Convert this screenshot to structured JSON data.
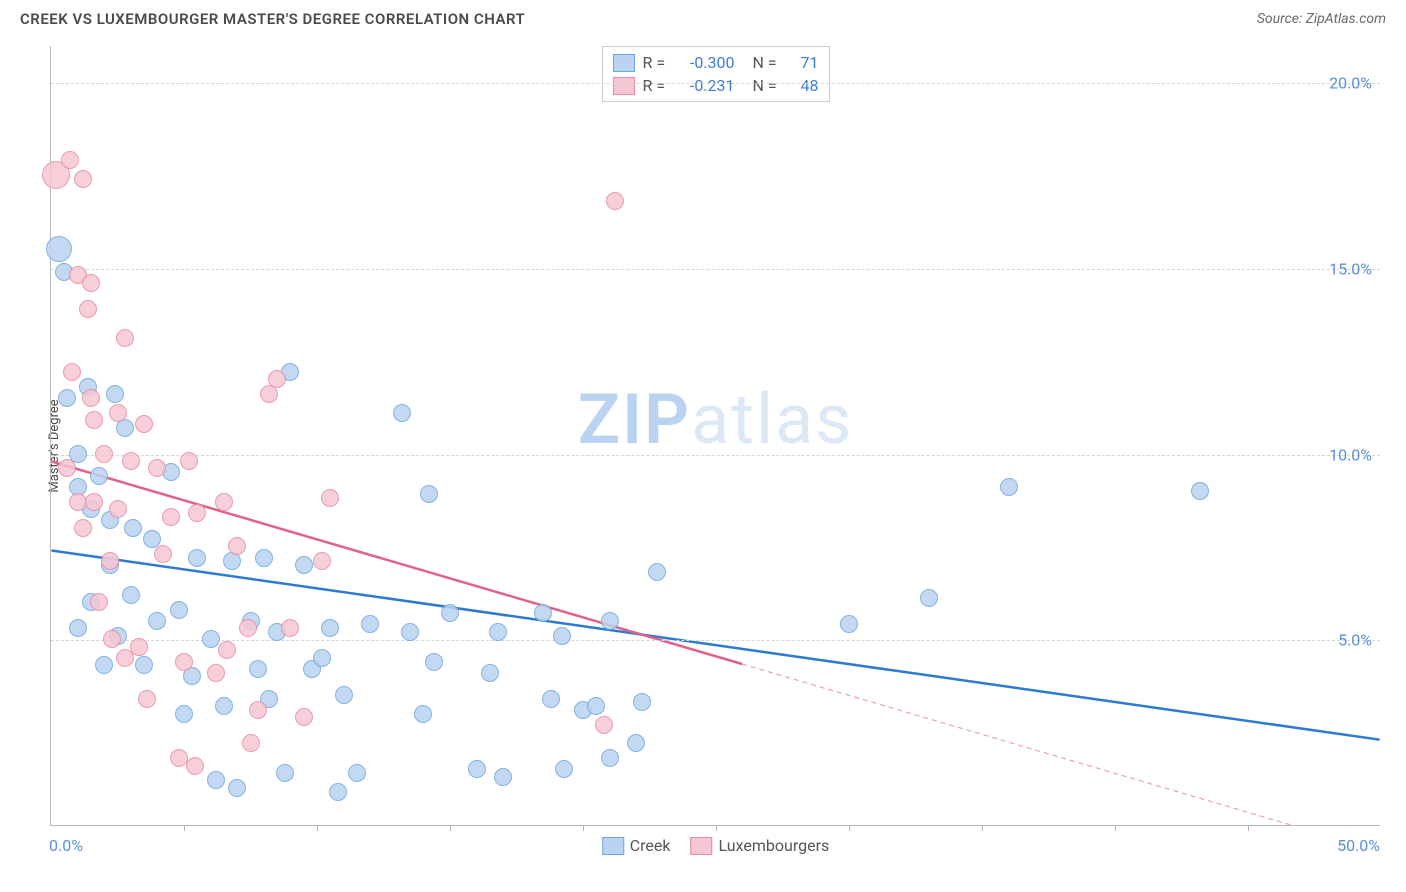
{
  "header": {
    "title": "CREEK VS LUXEMBOURGER MASTER'S DEGREE CORRELATION CHART",
    "source": "Source: ZipAtlas.com"
  },
  "chart": {
    "type": "scatter",
    "y_label": "Master's Degree",
    "xlim": [
      0,
      50
    ],
    "ylim": [
      0,
      21
    ],
    "x_tick_step": 5,
    "x_min_label": "0.0%",
    "x_max_label": "50.0%",
    "y_ticks": [
      5,
      10,
      15,
      20
    ],
    "y_tick_labels": [
      "5.0%",
      "10.0%",
      "15.0%",
      "20.0%"
    ],
    "grid_color": "#d6d6d6",
    "background_color": "#ffffff",
    "axis_label_color": "#5a8fd8",
    "watermark": {
      "text_bold": "ZIP",
      "text_light": "atlas",
      "color_bold": "#b9d3f0",
      "color_light": "#dce8f6"
    },
    "series": [
      {
        "name": "Creek",
        "color_fill": "#b9d3f0",
        "color_stroke": "#6ea6e0",
        "marker_radius": 9,
        "R": "-0.300",
        "N": "71",
        "trend": {
          "y_at_x0": 7.4,
          "y_at_x50": 2.3,
          "solid_until_x": 50,
          "stroke": "#2f7ad1",
          "width": 2.5
        },
        "points": [
          {
            "x": 0.3,
            "y": 15.5,
            "r": 13
          },
          {
            "x": 0.5,
            "y": 14.9
          },
          {
            "x": 0.6,
            "y": 11.5
          },
          {
            "x": 1.0,
            "y": 10.0
          },
          {
            "x": 1.4,
            "y": 11.8
          },
          {
            "x": 2.4,
            "y": 11.6
          },
          {
            "x": 1.0,
            "y": 9.1
          },
          {
            "x": 1.5,
            "y": 8.5
          },
          {
            "x": 2.2,
            "y": 7.0
          },
          {
            "x": 2.2,
            "y": 8.2
          },
          {
            "x": 3.1,
            "y": 8.0
          },
          {
            "x": 3.8,
            "y": 7.7
          },
          {
            "x": 3.0,
            "y": 6.2
          },
          {
            "x": 2.5,
            "y": 5.1
          },
          {
            "x": 1.5,
            "y": 6.0
          },
          {
            "x": 1.8,
            "y": 9.4
          },
          {
            "x": 4.5,
            "y": 9.5
          },
          {
            "x": 6.8,
            "y": 7.1
          },
          {
            "x": 7.5,
            "y": 5.5
          },
          {
            "x": 5.0,
            "y": 3.0
          },
          {
            "x": 5.3,
            "y": 4.0
          },
          {
            "x": 6.0,
            "y": 5.0
          },
          {
            "x": 6.2,
            "y": 1.2
          },
          {
            "x": 7.0,
            "y": 1.0
          },
          {
            "x": 7.8,
            "y": 4.2
          },
          {
            "x": 8.2,
            "y": 3.4
          },
          {
            "x": 8.5,
            "y": 5.2
          },
          {
            "x": 8.8,
            "y": 1.4
          },
          {
            "x": 9.0,
            "y": 12.2
          },
          {
            "x": 9.5,
            "y": 7.0
          },
          {
            "x": 9.8,
            "y": 4.2
          },
          {
            "x": 10.2,
            "y": 4.5
          },
          {
            "x": 10.5,
            "y": 5.3
          },
          {
            "x": 10.8,
            "y": 0.9
          },
          {
            "x": 11.0,
            "y": 3.5
          },
          {
            "x": 12.0,
            "y": 5.4
          },
          {
            "x": 13.2,
            "y": 11.1
          },
          {
            "x": 13.5,
            "y": 5.2
          },
          {
            "x": 14.0,
            "y": 3.0
          },
          {
            "x": 14.2,
            "y": 8.9
          },
          {
            "x": 14.4,
            "y": 4.4
          },
          {
            "x": 15.0,
            "y": 5.7
          },
          {
            "x": 16.0,
            "y": 1.5
          },
          {
            "x": 16.5,
            "y": 4.1
          },
          {
            "x": 16.8,
            "y": 5.2
          },
          {
            "x": 17.0,
            "y": 1.3
          },
          {
            "x": 18.5,
            "y": 5.7
          },
          {
            "x": 18.8,
            "y": 3.4
          },
          {
            "x": 19.2,
            "y": 5.1
          },
          {
            "x": 19.3,
            "y": 1.5
          },
          {
            "x": 20.0,
            "y": 3.1
          },
          {
            "x": 20.5,
            "y": 3.2
          },
          {
            "x": 21.0,
            "y": 1.8
          },
          {
            "x": 21.0,
            "y": 5.5
          },
          {
            "x": 22.0,
            "y": 2.2
          },
          {
            "x": 22.2,
            "y": 3.3
          },
          {
            "x": 22.8,
            "y": 6.8
          },
          {
            "x": 30.0,
            "y": 5.4
          },
          {
            "x": 33.0,
            "y": 6.1
          },
          {
            "x": 36.0,
            "y": 9.1
          },
          {
            "x": 43.2,
            "y": 9.0
          },
          {
            "x": 4.0,
            "y": 5.5
          },
          {
            "x": 3.5,
            "y": 4.3
          },
          {
            "x": 2.0,
            "y": 4.3
          },
          {
            "x": 1.0,
            "y": 5.3
          },
          {
            "x": 2.8,
            "y": 10.7
          },
          {
            "x": 5.5,
            "y": 7.2
          },
          {
            "x": 6.5,
            "y": 3.2
          },
          {
            "x": 8.0,
            "y": 7.2
          },
          {
            "x": 11.5,
            "y": 1.4
          },
          {
            "x": 4.8,
            "y": 5.8
          }
        ]
      },
      {
        "name": "Luxembourgers",
        "color_fill": "#f5c7d3",
        "color_stroke": "#e88aa3",
        "marker_radius": 9,
        "R": "-0.231",
        "N": "48",
        "trend": {
          "y_at_x0": 9.8,
          "y_at_x50": -0.7,
          "solid_until_x": 26,
          "stroke": "#e06288",
          "width": 2.5,
          "dash": "5,4"
        },
        "points": [
          {
            "x": 0.2,
            "y": 17.5,
            "r": 14
          },
          {
            "x": 0.7,
            "y": 17.9
          },
          {
            "x": 1.2,
            "y": 17.4
          },
          {
            "x": 1.0,
            "y": 14.8
          },
          {
            "x": 1.5,
            "y": 14.6
          },
          {
            "x": 2.8,
            "y": 13.1
          },
          {
            "x": 0.8,
            "y": 12.2
          },
          {
            "x": 1.5,
            "y": 11.5
          },
          {
            "x": 1.6,
            "y": 10.9
          },
          {
            "x": 2.5,
            "y": 11.1
          },
          {
            "x": 0.6,
            "y": 9.6
          },
          {
            "x": 1.0,
            "y": 8.7
          },
          {
            "x": 1.2,
            "y": 8.0
          },
          {
            "x": 1.6,
            "y": 8.7
          },
          {
            "x": 2.0,
            "y": 10.0
          },
          {
            "x": 2.2,
            "y": 7.1
          },
          {
            "x": 2.5,
            "y": 8.5
          },
          {
            "x": 3.0,
            "y": 9.8
          },
          {
            "x": 3.5,
            "y": 10.8
          },
          {
            "x": 4.0,
            "y": 9.6
          },
          {
            "x": 1.8,
            "y": 6.0
          },
          {
            "x": 2.3,
            "y": 5.0
          },
          {
            "x": 2.8,
            "y": 4.5
          },
          {
            "x": 3.3,
            "y": 4.8
          },
          {
            "x": 3.6,
            "y": 3.4
          },
          {
            "x": 4.2,
            "y": 7.3
          },
          {
            "x": 4.5,
            "y": 8.3
          },
          {
            "x": 5.2,
            "y": 9.8
          },
          {
            "x": 5.5,
            "y": 8.4
          },
          {
            "x": 5.0,
            "y": 4.4
          },
          {
            "x": 4.8,
            "y": 1.8
          },
          {
            "x": 5.4,
            "y": 1.6
          },
          {
            "x": 6.2,
            "y": 4.1
          },
          {
            "x": 6.6,
            "y": 4.7
          },
          {
            "x": 6.5,
            "y": 8.7
          },
          {
            "x": 7.0,
            "y": 7.5
          },
          {
            "x": 7.8,
            "y": 3.1
          },
          {
            "x": 7.4,
            "y": 5.3
          },
          {
            "x": 7.5,
            "y": 2.2
          },
          {
            "x": 8.5,
            "y": 12.0
          },
          {
            "x": 8.2,
            "y": 11.6
          },
          {
            "x": 9.0,
            "y": 5.3
          },
          {
            "x": 9.5,
            "y": 2.9
          },
          {
            "x": 10.5,
            "y": 8.8
          },
          {
            "x": 10.2,
            "y": 7.1
          },
          {
            "x": 20.8,
            "y": 2.7
          },
          {
            "x": 21.2,
            "y": 16.8
          },
          {
            "x": 1.4,
            "y": 13.9
          }
        ]
      }
    ],
    "legend_bottom": [
      {
        "label": "Creek",
        "fill": "#b9d3f0",
        "stroke": "#6ea6e0"
      },
      {
        "label": "Luxembourgers",
        "fill": "#f5c7d3",
        "stroke": "#e88aa3"
      }
    ]
  }
}
